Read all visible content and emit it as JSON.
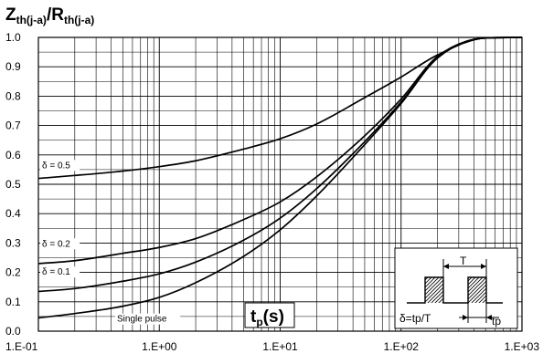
{
  "chart_data": {
    "type": "line",
    "title": {
      "z": "Z",
      "z_sub": "th(j-a)",
      "sep": "/",
      "r": "R",
      "r_sub": "th(j-a)"
    },
    "xlabel": {
      "main": "t",
      "sub": "p",
      "rest": "(s)"
    },
    "xscale": "log",
    "xlim": [
      0.1,
      1000
    ],
    "ylim": [
      0,
      1
    ],
    "grid": true,
    "x_tick_labels": [
      "1.E-01",
      "1.E+00",
      "1.E+01",
      "1.E+02",
      "1.E+03"
    ],
    "x_tick_values": [
      0.1,
      1,
      10,
      100,
      1000
    ],
    "y_tick_labels": [
      "0.0",
      "0.1",
      "0.2",
      "0.3",
      "0.4",
      "0.5",
      "0.6",
      "0.7",
      "0.8",
      "0.9",
      "1.0"
    ],
    "y_tick_values": [
      0,
      0.1,
      0.2,
      0.3,
      0.4,
      0.5,
      0.6,
      0.7,
      0.8,
      0.9,
      1.0
    ],
    "series": [
      {
        "name": "δ = 0.5",
        "x": [
          0.1,
          0.2,
          0.5,
          1,
          2,
          5,
          10,
          20,
          50,
          100,
          200,
          500,
          1000
        ],
        "y": [
          0.52,
          0.53,
          0.545,
          0.56,
          0.58,
          0.62,
          0.655,
          0.705,
          0.795,
          0.865,
          0.94,
          0.998,
          1.0
        ]
      },
      {
        "name": "δ = 0.2",
        "x": [
          0.1,
          0.2,
          0.5,
          1,
          2,
          5,
          10,
          20,
          50,
          100,
          200,
          500,
          1000
        ],
        "y": [
          0.23,
          0.24,
          0.265,
          0.285,
          0.315,
          0.38,
          0.44,
          0.525,
          0.665,
          0.79,
          0.935,
          0.998,
          1.0
        ]
      },
      {
        "name": "δ = 0.1",
        "x": [
          0.1,
          0.2,
          0.5,
          1,
          2,
          5,
          10,
          20,
          50,
          100,
          200,
          500,
          1000
        ],
        "y": [
          0.135,
          0.145,
          0.17,
          0.195,
          0.235,
          0.31,
          0.385,
          0.485,
          0.645,
          0.78,
          0.93,
          0.998,
          1.0
        ]
      },
      {
        "name": "Single pulse",
        "x": [
          0.1,
          0.2,
          0.5,
          1,
          2,
          5,
          10,
          20,
          50,
          100,
          200,
          500,
          1000
        ],
        "y": [
          0.045,
          0.06,
          0.085,
          0.115,
          0.165,
          0.255,
          0.345,
          0.46,
          0.635,
          0.775,
          0.93,
          0.998,
          1.0
        ]
      }
    ],
    "inset": {
      "period_label": "T",
      "duty_label": "δ=tp/T",
      "pulse_label": "tp"
    }
  }
}
